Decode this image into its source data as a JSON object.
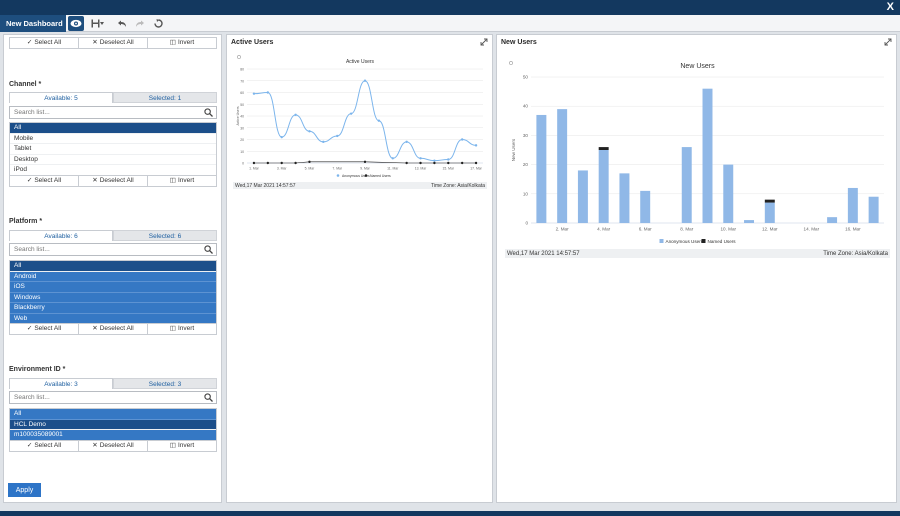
{
  "app": {
    "close": "X"
  },
  "toolbar": {
    "title": "New Dashboard"
  },
  "filters": {
    "select_all": "Select All",
    "deselect_all": "Deselect All",
    "invert": "Invert",
    "search_placeholder": "Search list...",
    "channel": {
      "label": "Channel *",
      "available": "Available: 5",
      "selected": "Selected: 1",
      "items": [
        "All",
        "Mobile",
        "Tablet",
        "Desktop",
        "iPod"
      ]
    },
    "platform": {
      "label": "Platform *",
      "available": "Available: 6",
      "selected": "Selected: 6",
      "items": [
        "All",
        "Android",
        "iOS",
        "Windows",
        "Blackberry",
        "Web"
      ]
    },
    "environment": {
      "label": "Environment ID *",
      "available": "Available: 3",
      "selected": "Selected: 3",
      "items": [
        "All",
        "HCL Demo",
        "m100035089001"
      ]
    },
    "apply": "Apply"
  },
  "active_users": {
    "panel_title": "Active Users",
    "footer_date": "Wed,17 Mar 2021 14:57:57",
    "footer_tz": "Time Zone: Asia/Kolkata"
  },
  "new_users": {
    "panel_title": "New Users",
    "footer_date": "Wed,17 Mar 2021 14:57:57",
    "footer_tz": "Time Zone: Asia/Kolkata"
  },
  "chart_data": [
    {
      "type": "line",
      "title": "Active Users",
      "ylabel": "Active Users",
      "ylim": [
        0,
        80
      ],
      "yticks": [
        0,
        10,
        20,
        30,
        40,
        50,
        60,
        70,
        80
      ],
      "xticks": [
        "1. Mar",
        "3. Mar",
        "5. Mar",
        "7. Mar",
        "9. Mar",
        "11. Mar",
        "13. Mar",
        "15. Mar",
        "17. Mar"
      ],
      "x": [
        1,
        2,
        3,
        4,
        5,
        6,
        7,
        8,
        9,
        10,
        11,
        12,
        13,
        14,
        15,
        16,
        17
      ],
      "series": [
        {
          "name": "Anonymous Users",
          "color": "#7cb5ec",
          "values": [
            59,
            60,
            22,
            41,
            27,
            18,
            23,
            42,
            70,
            36,
            4,
            18,
            4,
            2,
            3,
            20,
            15
          ]
        },
        {
          "name": "Named Users",
          "color": "#222222",
          "values": [
            0,
            0,
            0,
            0,
            1,
            null,
            null,
            null,
            1,
            null,
            null,
            0,
            0,
            0,
            0,
            0,
            0
          ]
        }
      ],
      "legend": "bottom"
    },
    {
      "type": "bar",
      "title": "New Users",
      "ylabel": "New Users",
      "ylim": [
        0,
        50
      ],
      "yticks": [
        0,
        10,
        20,
        30,
        40,
        50
      ],
      "xticks": [
        "2. Mar",
        "4. Mar",
        "6. Mar",
        "8. Mar",
        "10. Mar",
        "12. Mar",
        "14. Mar",
        "16. Mar"
      ],
      "x": [
        1,
        2,
        3,
        4,
        5,
        6,
        7,
        8,
        9,
        10,
        11,
        12,
        13,
        14,
        15,
        16,
        17
      ],
      "stacked": true,
      "series": [
        {
          "name": "Anonymous Users",
          "color": "#90b8e7",
          "values": [
            37,
            39,
            18,
            25,
            17,
            11,
            0,
            26,
            46,
            20,
            1,
            7,
            0,
            0,
            2,
            12,
            9
          ]
        },
        {
          "name": "Named Users",
          "color": "#222222",
          "values": [
            0,
            0,
            0,
            1,
            0,
            0,
            0,
            0,
            0,
            0,
            0,
            1,
            0,
            0,
            0,
            0,
            0
          ]
        }
      ],
      "legend": "bottom"
    }
  ]
}
